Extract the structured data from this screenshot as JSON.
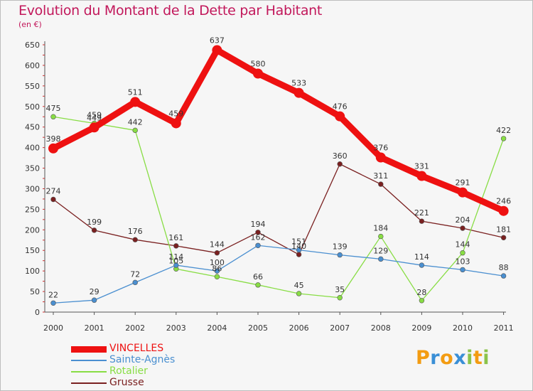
{
  "chart_data": {
    "type": "line",
    "title": "Evolution du Montant de la Dette par Habitant",
    "unit_label": "(en €)",
    "categories": [
      "2000",
      "2001",
      "2002",
      "2003",
      "2004",
      "2005",
      "2006",
      "2007",
      "2008",
      "2009",
      "2010",
      "2011"
    ],
    "ylim": [
      0,
      650
    ],
    "yticks": [
      0,
      50,
      100,
      150,
      200,
      250,
      300,
      350,
      400,
      450,
      500,
      550,
      600,
      650
    ],
    "grid": false,
    "legend_position": "bottom-left",
    "series": [
      {
        "name": "VINCELLES",
        "color": "#ee1111",
        "values": [
          398,
          449,
          511,
          459,
          637,
          580,
          533,
          476,
          376,
          331,
          291,
          246
        ]
      },
      {
        "name": "Sainte-Agnès",
        "color": "#4a8fd0",
        "values": [
          22,
          29,
          72,
          114,
          100,
          162,
          151,
          139,
          129,
          114,
          103,
          88
        ]
      },
      {
        "name": "Rotalier",
        "color": "#88dd44",
        "values": [
          475,
          459,
          442,
          105,
          86,
          66,
          45,
          35,
          184,
          28,
          144,
          422
        ]
      },
      {
        "name": "Grusse",
        "color": "#7a2020",
        "values": [
          274,
          199,
          176,
          161,
          144,
          194,
          140,
          360,
          311,
          221,
          204,
          181
        ]
      }
    ]
  },
  "logo": {
    "letters": [
      "P",
      "r",
      "o",
      "x",
      "i",
      "t",
      "i"
    ],
    "colors": [
      "#f39c12",
      "#3a8fd6",
      "#f39c12",
      "#3a8fd6",
      "#8bc34a",
      "#f39c12",
      "#8bc34a"
    ]
  }
}
